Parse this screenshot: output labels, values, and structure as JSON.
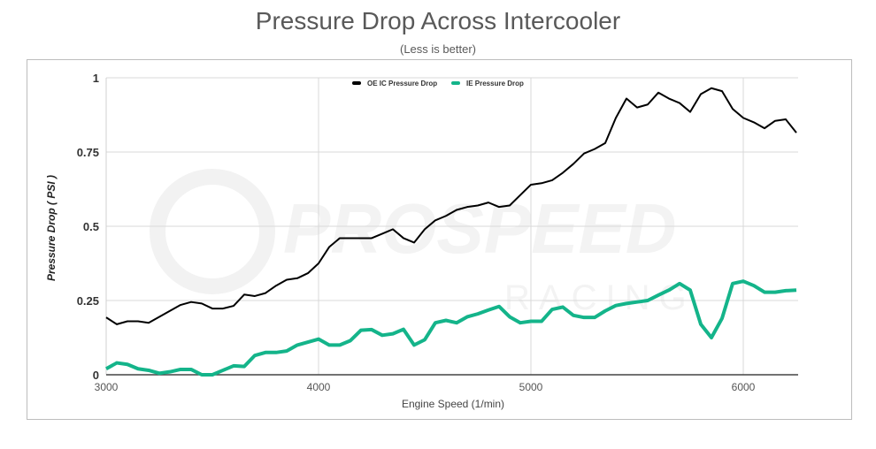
{
  "title": "Pressure Drop Across Intercooler",
  "subtitle": "(Less is better)",
  "watermark": {
    "line1": "PROSPEED",
    "line2": "RACING"
  },
  "chart_data": {
    "type": "line",
    "xlabel": "Engine Speed (1/min)",
    "ylabel": "Pressure Drop ( PSI )",
    "xlim": [
      3000,
      6250
    ],
    "ylim": [
      0,
      1
    ],
    "xticks": [
      3000,
      4000,
      5000,
      6000
    ],
    "xtick_labels": [
      "3000",
      "4000",
      "5000",
      "6000"
    ],
    "yticks": [
      0,
      0.25,
      0.5,
      0.75,
      1
    ],
    "ytick_labels": [
      "0",
      "0.25",
      "0.5",
      "0.75",
      "1"
    ],
    "grid": true,
    "legend_position": "top",
    "x": [
      3000,
      3050,
      3100,
      3150,
      3200,
      3250,
      3300,
      3350,
      3400,
      3450,
      3500,
      3550,
      3600,
      3650,
      3700,
      3750,
      3800,
      3850,
      3900,
      3950,
      4000,
      4050,
      4100,
      4150,
      4200,
      4250,
      4300,
      4350,
      4400,
      4450,
      4500,
      4550,
      4600,
      4650,
      4700,
      4750,
      4800,
      4850,
      4900,
      4950,
      5000,
      5050,
      5100,
      5150,
      5200,
      5250,
      5300,
      5350,
      5400,
      5450,
      5500,
      5550,
      5600,
      5650,
      5700,
      5750,
      5800,
      5850,
      5900,
      5950,
      6000,
      6050,
      6100,
      6150,
      6200,
      6250
    ],
    "series": [
      {
        "name": "OE IC Pressure Drop",
        "color": "#000000",
        "values": [
          0.193,
          0.17,
          0.18,
          0.18,
          0.175,
          0.195,
          0.215,
          0.235,
          0.245,
          0.24,
          0.223,
          0.223,
          0.232,
          0.27,
          0.265,
          0.275,
          0.3,
          0.32,
          0.325,
          0.342,
          0.375,
          0.43,
          0.46,
          0.46,
          0.46,
          0.46,
          0.475,
          0.49,
          0.46,
          0.445,
          0.49,
          0.52,
          0.535,
          0.555,
          0.565,
          0.57,
          0.58,
          0.565,
          0.57,
          0.605,
          0.64,
          0.645,
          0.655,
          0.68,
          0.71,
          0.745,
          0.76,
          0.78,
          0.865,
          0.93,
          0.9,
          0.91,
          0.95,
          0.93,
          0.915,
          0.885,
          0.945,
          0.965,
          0.955,
          0.895,
          0.865,
          0.85,
          0.83,
          0.855,
          0.86,
          0.815
        ]
      },
      {
        "name": "IE Pressure Drop",
        "color": "#14b48a",
        "values": [
          0.02,
          0.04,
          0.035,
          0.02,
          0.015,
          0.005,
          0.01,
          0.018,
          0.018,
          0,
          0,
          0.015,
          0.03,
          0.028,
          0.065,
          0.075,
          0.075,
          0.08,
          0.1,
          0.11,
          0.12,
          0.1,
          0.1,
          0.115,
          0.15,
          0.152,
          0.133,
          0.138,
          0.153,
          0.1,
          0.118,
          0.175,
          0.183,
          0.175,
          0.195,
          0.205,
          0.218,
          0.23,
          0.195,
          0.175,
          0.18,
          0.18,
          0.22,
          0.228,
          0.2,
          0.193,
          0.193,
          0.215,
          0.233,
          0.24,
          0.245,
          0.25,
          0.268,
          0.285,
          0.307,
          0.285,
          0.17,
          0.125,
          0.19,
          0.307,
          0.315,
          0.3,
          0.278,
          0.278,
          0.283,
          0.285
        ]
      }
    ]
  }
}
